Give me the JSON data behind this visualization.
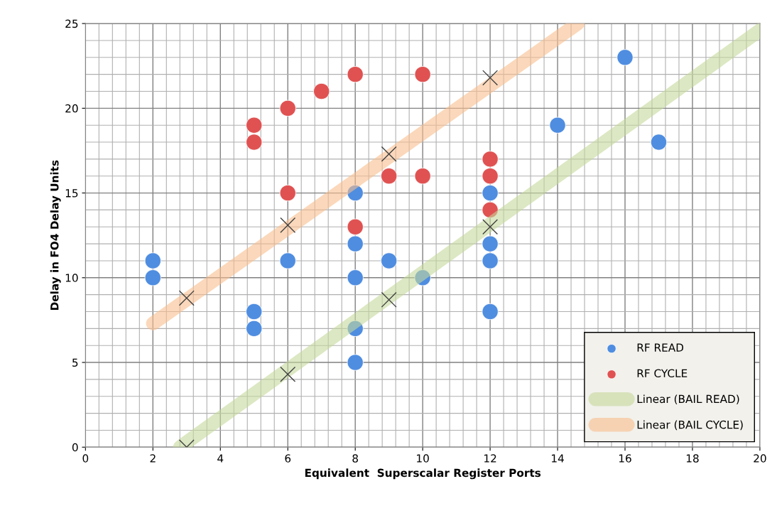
{
  "chart_data": {
    "type": "scatter",
    "xlabel": "Equivalent  Superscalar Register Ports",
    "ylabel": "Delay in FO4 Delay Units",
    "xlim": [
      0,
      20
    ],
    "ylim": [
      0,
      25
    ],
    "xticks": [
      0,
      2,
      4,
      6,
      8,
      10,
      12,
      14,
      16,
      18,
      20
    ],
    "yticks": [
      0,
      5,
      10,
      15,
      20,
      25
    ],
    "grid": true,
    "legend": "bottom right",
    "marker": "circle",
    "series": [
      {
        "name": "RF READ",
        "color": "#4f8de0",
        "x": [
          2,
          2,
          5,
          5,
          6,
          8,
          8,
          8,
          8,
          8,
          9,
          10,
          12,
          12,
          12,
          12,
          14,
          16,
          17
        ],
        "values": [
          11,
          10,
          8,
          7,
          11,
          15,
          12,
          10,
          7,
          5,
          11,
          10,
          15,
          12,
          11,
          8,
          19,
          23,
          18
        ]
      },
      {
        "name": "RF CYCLE",
        "color": "#e05252",
        "x": [
          5,
          5,
          6,
          6,
          7,
          8,
          8,
          9,
          10,
          10,
          12,
          12,
          12
        ],
        "values": [
          19,
          18,
          20,
          15,
          21,
          22,
          13,
          16,
          22,
          16,
          17,
          16,
          14
        ]
      },
      {
        "name": "Linear (BAIL READ)",
        "type": "line",
        "color": "#c4d89b",
        "marker": "none",
        "x": [
          2.8,
          20
        ],
        "values": [
          0,
          24.6
        ]
      },
      {
        "name": "Linear (BAIL CYCLE)",
        "type": "line",
        "color": "#f9be8d",
        "marker": "none",
        "x": [
          2,
          14.6
        ],
        "values": [
          7.3,
          25
        ]
      },
      {
        "color": "#404040",
        "marker": "cross",
        "x": [
          3,
          6,
          9,
          12
        ],
        "values": [
          0,
          4.3,
          8.7,
          13
        ]
      },
      {
        "color": "#404040",
        "marker": "cross",
        "x": [
          3,
          6,
          9,
          12
        ],
        "values": [
          8.8,
          13.1,
          17.3,
          21.8
        ]
      }
    ]
  }
}
